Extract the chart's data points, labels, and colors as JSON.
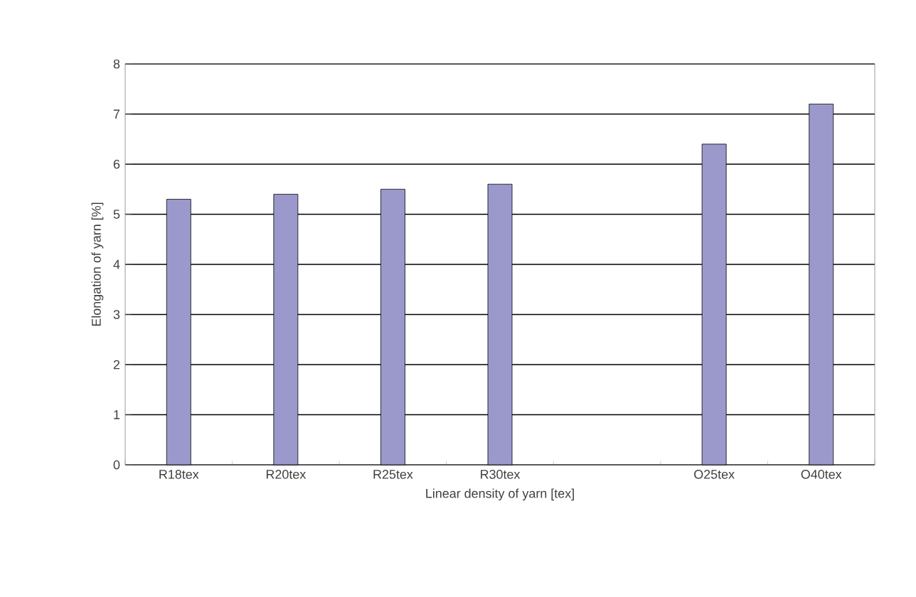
{
  "chart_data": {
    "type": "bar",
    "xlabel": "Linear density of yarn [tex]",
    "ylabel": "Elongation of yarn [%]",
    "categories": [
      "R18tex",
      "R20tex",
      "R25tex",
      "R30tex",
      null,
      "O25tex",
      "O40tex"
    ],
    "values": [
      5.3,
      5.4,
      5.5,
      5.6,
      null,
      6.4,
      7.2
    ],
    "color": "#9b99cc",
    "ylim": [
      0,
      8
    ],
    "yticks": [
      0,
      1,
      2,
      3,
      4,
      5,
      6,
      7,
      8
    ],
    "grid": "y"
  }
}
